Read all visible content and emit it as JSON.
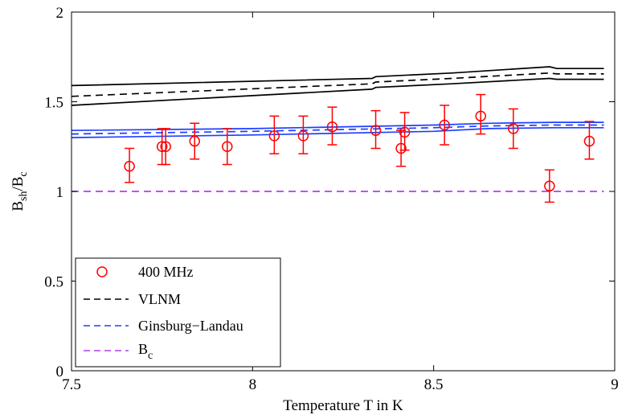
{
  "chart_data": {
    "type": "line",
    "title": "",
    "xlabel": "Temperature T in K",
    "ylabel": {
      "base": "B",
      "sub1": "sh",
      "sep": "/B",
      "sub2": "c"
    },
    "xlim": [
      7.5,
      9
    ],
    "ylim": [
      0,
      2
    ],
    "x_ticks": [
      7.5,
      8,
      8.5,
      9
    ],
    "x_tick_labels": [
      "7.5",
      "8",
      "8.5",
      "9"
    ],
    "y_ticks": [
      0,
      0.5,
      1,
      1.5,
      2
    ],
    "y_tick_labels": [
      "0",
      "0.5",
      "1",
      "1.5",
      "2"
    ],
    "legend_position": "bottom-left",
    "legend": [
      {
        "key": "meas",
        "label": "400 MHz",
        "color": "#ff0000",
        "style": "marker-circle"
      },
      {
        "key": "vlnm",
        "label": "VLNM",
        "color": "#000000",
        "style": "dashed"
      },
      {
        "key": "gl",
        "label": "Ginsburg−Landau",
        "color": "#1f3fff",
        "style": "dashed"
      },
      {
        "key": "bc",
        "label_base": "B",
        "label_sub": "c",
        "color": "#b43cf0",
        "style": "dashed"
      }
    ],
    "series": [
      {
        "name": "400 MHz",
        "type": "scatter",
        "color": "#ff0000",
        "x": [
          7.66,
          7.75,
          7.76,
          7.84,
          7.93,
          8.06,
          8.14,
          8.22,
          8.34,
          8.41,
          8.42,
          8.53,
          8.63,
          8.72,
          8.82,
          8.93
        ],
        "y": [
          1.14,
          1.25,
          1.25,
          1.28,
          1.25,
          1.31,
          1.31,
          1.36,
          1.34,
          1.24,
          1.33,
          1.37,
          1.42,
          1.35,
          1.03,
          1.28
        ],
        "err_low": [
          1.05,
          1.15,
          1.15,
          1.18,
          1.15,
          1.21,
          1.21,
          1.26,
          1.24,
          1.14,
          1.23,
          1.26,
          1.32,
          1.24,
          0.94,
          1.18
        ],
        "err_high": [
          1.24,
          1.35,
          1.35,
          1.38,
          1.35,
          1.42,
          1.42,
          1.47,
          1.45,
          1.34,
          1.44,
          1.48,
          1.54,
          1.46,
          1.12,
          1.39
        ]
      },
      {
        "name": "VLNM",
        "type": "line",
        "color": "#000000",
        "x": [
          7.5,
          8.33,
          8.34,
          8.55,
          8.82,
          8.84,
          8.97
        ],
        "y": [
          1.53,
          1.6,
          1.61,
          1.63,
          1.66,
          1.655,
          1.655
        ],
        "band_upper": [
          1.59,
          1.63,
          1.64,
          1.66,
          1.695,
          1.685,
          1.685
        ],
        "band_lower": [
          1.48,
          1.57,
          1.58,
          1.6,
          1.63,
          1.625,
          1.625
        ]
      },
      {
        "name": "Ginsburg−Landau",
        "type": "line",
        "color": "#1f3fff",
        "x": [
          7.5,
          8.0,
          8.5,
          8.65,
          8.83,
          8.97
        ],
        "y": [
          1.32,
          1.335,
          1.355,
          1.365,
          1.37,
          1.37
        ],
        "band_upper": [
          1.34,
          1.35,
          1.37,
          1.38,
          1.385,
          1.385
        ],
        "band_lower": [
          1.3,
          1.315,
          1.335,
          1.35,
          1.355,
          1.355
        ]
      },
      {
        "name": "B_c",
        "type": "line",
        "color": "#b43cf0",
        "x": [
          7.5,
          8.97
        ],
        "y": [
          1.0,
          1.0
        ]
      }
    ]
  }
}
